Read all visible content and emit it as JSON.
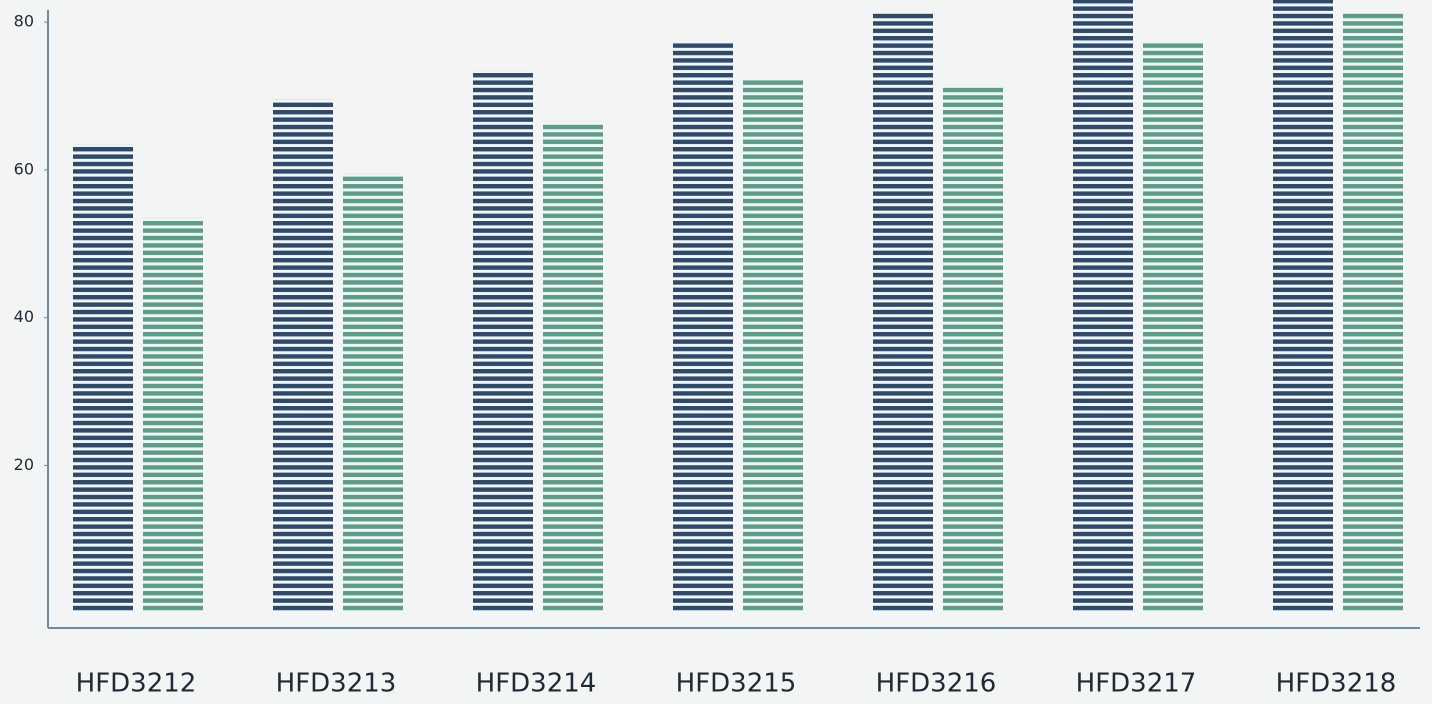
{
  "chart_data": {
    "type": "bar",
    "categories": [
      "HFD3212",
      "HFD3213",
      "HFD3214",
      "HFD3215",
      "HFD3216",
      "HFD3217",
      "HFD3218"
    ],
    "series": [
      {
        "color": "#2d4a6c",
        "values": [
          63.5,
          69.5,
          73.5,
          77.5,
          81.5,
          83,
          83
        ]
      },
      {
        "color": "#5a9e8a",
        "values": [
          53.5,
          59.5,
          66.5,
          72.5,
          71.5,
          77.5,
          81.5
        ]
      }
    ],
    "ylim": [
      -2,
      83
    ],
    "yticks": [
      20,
      40,
      60,
      80
    ],
    "grid": false
  }
}
